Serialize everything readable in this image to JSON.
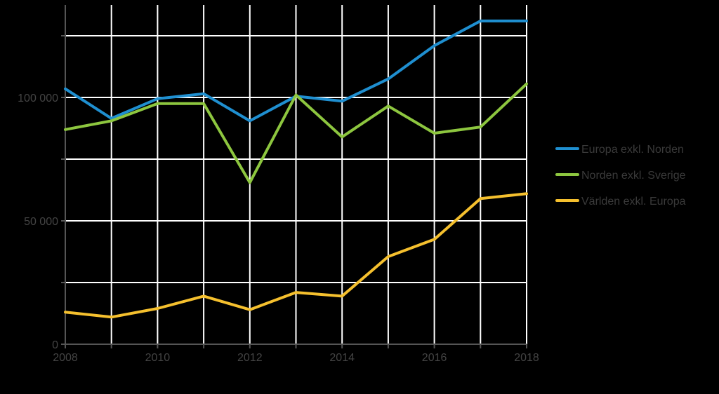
{
  "chart_data": {
    "type": "line",
    "x": [
      2008,
      2009,
      2010,
      2011,
      2012,
      2013,
      2014,
      2015,
      2016,
      2017,
      2018
    ],
    "series": [
      {
        "name": "Europa exkl. Norden",
        "color": "#1f8fd0",
        "values": [
          103500,
          91500,
          99500,
          101500,
          90500,
          100500,
          98500,
          107500,
          121000,
          131000,
          131000
        ]
      },
      {
        "name": "Norden exkl. Sverige",
        "color": "#8dc63f",
        "values": [
          87000,
          90500,
          97500,
          97500,
          65500,
          101000,
          84000,
          96500,
          85500,
          88000,
          105500
        ]
      },
      {
        "name": "Världen exkl. Europa",
        "color": "#f5c02e",
        "values": [
          13000,
          11000,
          14500,
          19500,
          14000,
          21000,
          19500,
          35500,
          42500,
          59000,
          61000
        ]
      }
    ],
    "xlim": [
      2008,
      2018
    ],
    "ylim": [
      0,
      137500
    ],
    "x_ticks": [
      "2008",
      "2010",
      "2012",
      "2014",
      "2016",
      "2018"
    ],
    "y_ticks": [
      {
        "value": 0,
        "label": "0"
      },
      {
        "value": 50000,
        "label": "50 000"
      },
      {
        "value": 100000,
        "label": "100 000"
      }
    ],
    "y_gridlines": [
      0,
      25000,
      50000,
      75000,
      100000,
      125000
    ],
    "x_gridlines": [
      2008,
      2009,
      2010,
      2011,
      2012,
      2013,
      2014,
      2015,
      2016,
      2017,
      2018
    ],
    "grid": true,
    "legend_position": "right",
    "colors": {
      "background": "#000000",
      "grid": "#ffffff",
      "axis": "#555555",
      "text": "#444444"
    }
  }
}
